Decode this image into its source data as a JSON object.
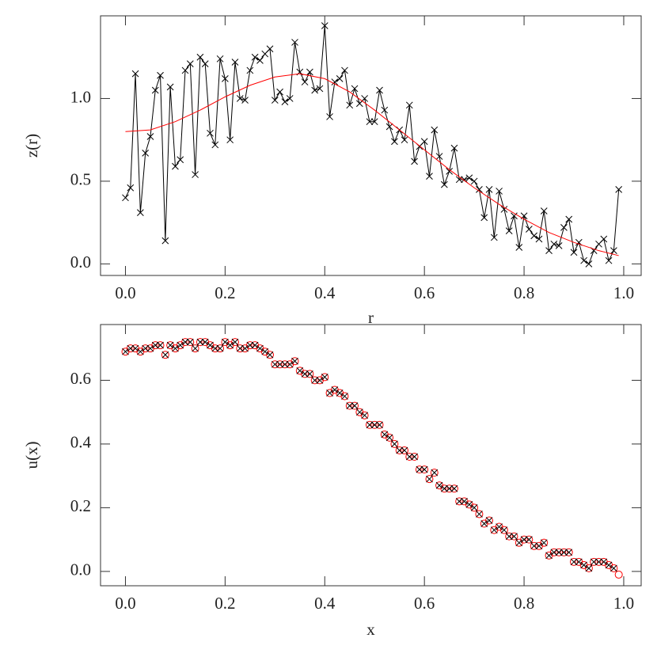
{
  "chart_data": [
    {
      "type": "line",
      "xlabel": "r",
      "ylabel": "z(r)",
      "xlim": [
        -0.05,
        1.035
      ],
      "ylim": [
        -0.07,
        1.5
      ],
      "xticks": [
        {
          "value": 0,
          "label": "0.0"
        },
        {
          "value": 0.2,
          "label": "0.2"
        },
        {
          "value": 0.4,
          "label": "0.4"
        },
        {
          "value": 0.6,
          "label": "0.6"
        },
        {
          "value": 0.8,
          "label": "0.8"
        },
        {
          "value": 1,
          "label": "1.0"
        }
      ],
      "yticks": [
        {
          "value": 0,
          "label": "0.0"
        },
        {
          "value": 0.5,
          "label": "0.5"
        },
        {
          "value": 1,
          "label": "1.0"
        }
      ],
      "series": [
        {
          "color": "#000000",
          "marker": "x",
          "line": true,
          "x": [
            0,
            0.01,
            0.02,
            0.03,
            0.04,
            0.05,
            0.06,
            0.07,
            0.08,
            0.09,
            0.1,
            0.11,
            0.12,
            0.13,
            0.14,
            0.15,
            0.16,
            0.17,
            0.18,
            0.19,
            0.2,
            0.21,
            0.22,
            0.23,
            0.24,
            0.25,
            0.26,
            0.27,
            0.28,
            0.29,
            0.3,
            0.31,
            0.32,
            0.33,
            0.34,
            0.35,
            0.36,
            0.37,
            0.38,
            0.39,
            0.4,
            0.41,
            0.42,
            0.43,
            0.44,
            0.45,
            0.46,
            0.47,
            0.48,
            0.49,
            0.5,
            0.51,
            0.52,
            0.53,
            0.54,
            0.55,
            0.56,
            0.57,
            0.58,
            0.59,
            0.6,
            0.61,
            0.62,
            0.63,
            0.64,
            0.65,
            0.66,
            0.67,
            0.68,
            0.69,
            0.7,
            0.71,
            0.72,
            0.73,
            0.74,
            0.75,
            0.76,
            0.77,
            0.78,
            0.79,
            0.8,
            0.81,
            0.82,
            0.83,
            0.84,
            0.85,
            0.86,
            0.87,
            0.88,
            0.89,
            0.9,
            0.91,
            0.92,
            0.93,
            0.94,
            0.95,
            0.96,
            0.97,
            0.98,
            0.99
          ],
          "values": [
            0.4,
            0.46,
            1.15,
            0.31,
            0.67,
            0.77,
            1.05,
            1.14,
            0.14,
            1.07,
            0.59,
            0.63,
            1.17,
            1.21,
            0.54,
            1.25,
            1.21,
            0.79,
            0.72,
            1.24,
            1.12,
            0.75,
            1.22,
            1.0,
            0.99,
            1.17,
            1.25,
            1.23,
            1.27,
            1.3,
            0.99,
            1.04,
            0.98,
            1.0,
            1.34,
            1.16,
            1.1,
            1.16,
            1.05,
            1.06,
            1.44,
            0.89,
            1.1,
            1.12,
            1.17,
            0.96,
            1.06,
            0.97,
            1.0,
            0.86,
            0.86,
            1.05,
            0.93,
            0.83,
            0.74,
            0.81,
            0.75,
            0.96,
            0.62,
            0.71,
            0.74,
            0.53,
            0.81,
            0.65,
            0.48,
            0.56,
            0.7,
            0.51,
            0.51,
            0.52,
            0.5,
            0.45,
            0.28,
            0.45,
            0.16,
            0.44,
            0.33,
            0.2,
            0.29,
            0.1,
            0.29,
            0.21,
            0.17,
            0.15,
            0.32,
            0.08,
            0.12,
            0.11,
            0.22,
            0.27,
            0.07,
            0.13,
            0.02,
            0.0,
            0.08,
            0.12,
            0.15,
            0.02,
            0.08,
            0.45
          ]
        },
        {
          "color": "#ff0000",
          "marker": "none",
          "line": true,
          "x": [
            0,
            0.05,
            0.1,
            0.15,
            0.2,
            0.25,
            0.3,
            0.35,
            0.4,
            0.45,
            0.5,
            0.55,
            0.6,
            0.65,
            0.7,
            0.75,
            0.8,
            0.85,
            0.9,
            0.95,
            0.99
          ],
          "values": [
            0.8,
            0.81,
            0.86,
            0.93,
            1.01,
            1.08,
            1.13,
            1.15,
            1.12,
            1.04,
            0.93,
            0.81,
            0.69,
            0.57,
            0.46,
            0.36,
            0.27,
            0.19,
            0.13,
            0.08,
            0.05
          ]
        }
      ]
    },
    {
      "type": "line",
      "xlabel": "x",
      "ylabel": "u(x)",
      "xlim": [
        -0.05,
        1.035
      ],
      "ylim": [
        -0.045,
        0.775
      ],
      "xticks": [
        {
          "value": 0,
          "label": "0.0"
        },
        {
          "value": 0.2,
          "label": "0.2"
        },
        {
          "value": 0.4,
          "label": "0.4"
        },
        {
          "value": 0.6,
          "label": "0.6"
        },
        {
          "value": 0.8,
          "label": "0.8"
        },
        {
          "value": 1,
          "label": "1.0"
        }
      ],
      "yticks": [
        {
          "value": 0,
          "label": "0.0"
        },
        {
          "value": 0.2,
          "label": "0.2"
        },
        {
          "value": 0.4,
          "label": "0.4"
        },
        {
          "value": 0.6,
          "label": "0.6"
        }
      ],
      "series": [
        {
          "color": "#ff0000",
          "marker": "o",
          "line": false,
          "x": [
            0,
            0.01,
            0.02,
            0.03,
            0.04,
            0.05,
            0.06,
            0.07,
            0.08,
            0.09,
            0.1,
            0.11,
            0.12,
            0.13,
            0.14,
            0.15,
            0.16,
            0.17,
            0.18,
            0.19,
            0.2,
            0.21,
            0.22,
            0.23,
            0.24,
            0.25,
            0.26,
            0.27,
            0.28,
            0.29,
            0.3,
            0.31,
            0.32,
            0.33,
            0.34,
            0.35,
            0.36,
            0.37,
            0.38,
            0.39,
            0.4,
            0.41,
            0.42,
            0.43,
            0.44,
            0.45,
            0.46,
            0.47,
            0.48,
            0.49,
            0.5,
            0.51,
            0.52,
            0.53,
            0.54,
            0.55,
            0.56,
            0.57,
            0.58,
            0.59,
            0.6,
            0.61,
            0.62,
            0.63,
            0.64,
            0.65,
            0.66,
            0.67,
            0.68,
            0.69,
            0.7,
            0.71,
            0.72,
            0.73,
            0.74,
            0.75,
            0.76,
            0.77,
            0.78,
            0.79,
            0.8,
            0.81,
            0.82,
            0.83,
            0.84,
            0.85,
            0.86,
            0.87,
            0.88,
            0.89,
            0.9,
            0.91,
            0.92,
            0.93,
            0.94,
            0.95,
            0.96,
            0.97,
            0.98,
            0.99
          ],
          "values": [
            0.69,
            0.7,
            0.7,
            0.69,
            0.7,
            0.7,
            0.71,
            0.71,
            0.68,
            0.71,
            0.7,
            0.71,
            0.72,
            0.72,
            0.7,
            0.72,
            0.72,
            0.71,
            0.7,
            0.7,
            0.72,
            0.71,
            0.72,
            0.7,
            0.7,
            0.71,
            0.71,
            0.7,
            0.69,
            0.68,
            0.65,
            0.65,
            0.65,
            0.65,
            0.66,
            0.63,
            0.62,
            0.62,
            0.6,
            0.6,
            0.61,
            0.56,
            0.57,
            0.56,
            0.55,
            0.52,
            0.52,
            0.5,
            0.49,
            0.46,
            0.46,
            0.46,
            0.43,
            0.42,
            0.4,
            0.38,
            0.38,
            0.36,
            0.36,
            0.32,
            0.32,
            0.29,
            0.31,
            0.27,
            0.26,
            0.26,
            0.26,
            0.22,
            0.22,
            0.21,
            0.2,
            0.18,
            0.15,
            0.16,
            0.13,
            0.14,
            0.13,
            0.11,
            0.11,
            0.09,
            0.1,
            0.1,
            0.08,
            0.08,
            0.09,
            0.05,
            0.06,
            0.06,
            0.06,
            0.06,
            0.03,
            0.03,
            0.02,
            0.01,
            0.03,
            0.03,
            0.03,
            0.02,
            0.01,
            -0.01
          ]
        },
        {
          "color": "#000000",
          "marker": "x",
          "line": false,
          "x": [
            0,
            0.01,
            0.02,
            0.03,
            0.04,
            0.05,
            0.06,
            0.07,
            0.08,
            0.09,
            0.1,
            0.11,
            0.12,
            0.13,
            0.14,
            0.15,
            0.16,
            0.17,
            0.18,
            0.19,
            0.2,
            0.21,
            0.22,
            0.23,
            0.24,
            0.25,
            0.26,
            0.27,
            0.28,
            0.29,
            0.3,
            0.31,
            0.32,
            0.33,
            0.34,
            0.35,
            0.36,
            0.37,
            0.38,
            0.39,
            0.4,
            0.41,
            0.42,
            0.43,
            0.44,
            0.45,
            0.46,
            0.47,
            0.48,
            0.49,
            0.5,
            0.51,
            0.52,
            0.53,
            0.54,
            0.55,
            0.56,
            0.57,
            0.58,
            0.59,
            0.6,
            0.61,
            0.62,
            0.63,
            0.64,
            0.65,
            0.66,
            0.67,
            0.68,
            0.69,
            0.7,
            0.71,
            0.72,
            0.73,
            0.74,
            0.75,
            0.76,
            0.77,
            0.78,
            0.79,
            0.8,
            0.81,
            0.82,
            0.83,
            0.84,
            0.85,
            0.86,
            0.87,
            0.88,
            0.89,
            0.9,
            0.91,
            0.92,
            0.93,
            0.94,
            0.95,
            0.96,
            0.97,
            0.98
          ],
          "values": [
            0.69,
            0.7,
            0.7,
            0.69,
            0.7,
            0.7,
            0.71,
            0.71,
            0.68,
            0.71,
            0.7,
            0.71,
            0.72,
            0.72,
            0.7,
            0.72,
            0.72,
            0.71,
            0.7,
            0.7,
            0.72,
            0.71,
            0.72,
            0.7,
            0.7,
            0.71,
            0.71,
            0.7,
            0.69,
            0.68,
            0.65,
            0.65,
            0.65,
            0.65,
            0.66,
            0.63,
            0.62,
            0.62,
            0.6,
            0.6,
            0.61,
            0.56,
            0.57,
            0.56,
            0.55,
            0.52,
            0.52,
            0.5,
            0.49,
            0.46,
            0.46,
            0.46,
            0.43,
            0.42,
            0.4,
            0.38,
            0.38,
            0.36,
            0.36,
            0.32,
            0.32,
            0.29,
            0.31,
            0.27,
            0.26,
            0.26,
            0.26,
            0.22,
            0.22,
            0.21,
            0.2,
            0.18,
            0.15,
            0.16,
            0.13,
            0.14,
            0.13,
            0.11,
            0.11,
            0.09,
            0.1,
            0.1,
            0.08,
            0.08,
            0.09,
            0.05,
            0.06,
            0.06,
            0.06,
            0.06,
            0.03,
            0.03,
            0.02,
            0.01,
            0.03,
            0.03,
            0.03,
            0.02,
            0.01
          ]
        }
      ]
    }
  ]
}
